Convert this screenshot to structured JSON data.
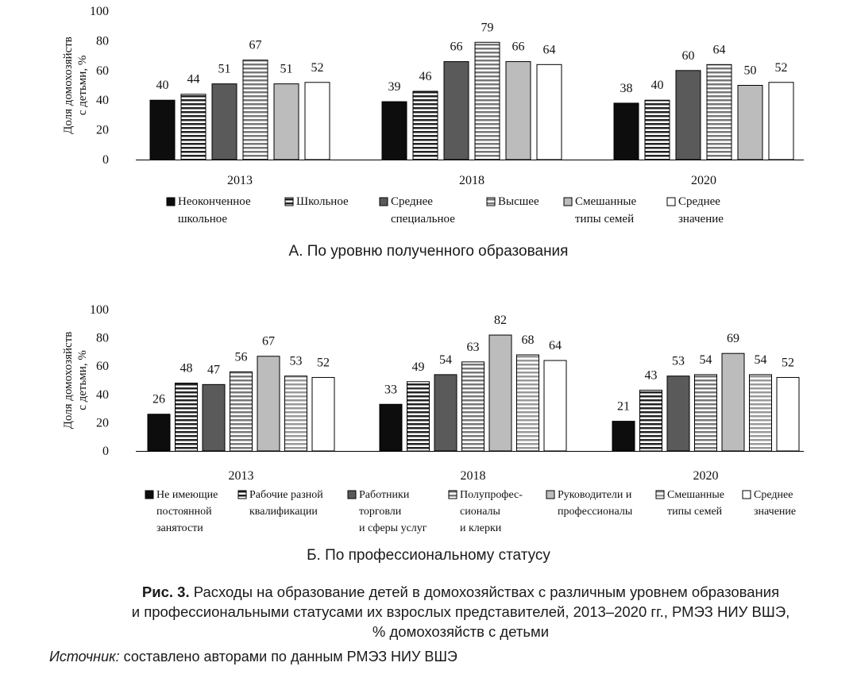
{
  "chart_data": [
    {
      "type": "bar",
      "panel": "A",
      "subtitle": "А. По уровню полученного образования",
      "ylabel": "Доля домохозяйств с детьми, %",
      "ylabel_lines": [
        "Доля домохозяйств",
        "с детьми, %"
      ],
      "ylim": [
        0,
        100
      ],
      "yticks": [
        0,
        20,
        40,
        60,
        80,
        100
      ],
      "categories": [
        "2013",
        "2018",
        "2020"
      ],
      "series": [
        {
          "name": "Неоконченное школьное",
          "legend_lines": [
            "Неоконченное",
            "школьное"
          ],
          "pattern": "solid-black",
          "values": [
            40,
            39,
            38
          ]
        },
        {
          "name": "Школьное",
          "legend_lines": [
            "Школьное"
          ],
          "pattern": "h-stripes-dense",
          "values": [
            44,
            46,
            40
          ]
        },
        {
          "name": "Среднее специальное",
          "legend_lines": [
            "Среднее",
            "специальное"
          ],
          "pattern": "solid-darkgray",
          "values": [
            51,
            66,
            60
          ]
        },
        {
          "name": "Высшее",
          "legend_lines": [
            "Высшее"
          ],
          "pattern": "h-stripes-gray",
          "values": [
            67,
            79,
            64
          ]
        },
        {
          "name": "Смешанные типы семей",
          "legend_lines": [
            "Смешанные",
            "типы семей"
          ],
          "pattern": "solid-lightgray",
          "values": [
            51,
            66,
            50
          ]
        },
        {
          "name": "Среднее значение",
          "legend_lines": [
            "Среднее",
            "значение"
          ],
          "pattern": "white",
          "values": [
            52,
            64,
            52
          ]
        }
      ]
    },
    {
      "type": "bar",
      "panel": "B",
      "subtitle": "Б. По профессиональному статусу",
      "ylabel": "Доля домохозяйств с детьми, %",
      "ylabel_lines": [
        "Доля домохозяйств",
        "с детьми, %"
      ],
      "ylim": [
        0,
        100
      ],
      "yticks": [
        0,
        20,
        40,
        60,
        80,
        100
      ],
      "categories": [
        "2013",
        "2018",
        "2020"
      ],
      "series": [
        {
          "name": "Не имеющие постоянной занятости",
          "legend_lines": [
            "Не имеющие",
            "постоянной",
            "занятости"
          ],
          "pattern": "solid-black",
          "values": [
            26,
            33,
            21
          ]
        },
        {
          "name": "Рабочие разной квалификации",
          "legend_lines": [
            "Рабочие разной",
            "квалификации"
          ],
          "pattern": "h-stripes-dense",
          "values": [
            48,
            49,
            43
          ]
        },
        {
          "name": "Работники торговли и сферы услуг",
          "legend_lines": [
            "Работники",
            "торговли",
            "и сферы услуг"
          ],
          "pattern": "solid-darkgray",
          "values": [
            47,
            54,
            53
          ]
        },
        {
          "name": "Полупрофессионалы и клерки",
          "legend_lines": [
            "Полупрофес-",
            "сионалы",
            "и клерки"
          ],
          "pattern": "h-stripes-gray",
          "values": [
            56,
            63,
            54
          ]
        },
        {
          "name": "Руководители и профессионалы",
          "legend_lines": [
            "Руководители и",
            "профессионалы"
          ],
          "pattern": "solid-lightgray",
          "values": [
            67,
            82,
            69
          ]
        },
        {
          "name": "Смешанные типы семей",
          "legend_lines": [
            "Смешанные",
            "типы семей"
          ],
          "pattern": "h-stripes-light",
          "values": [
            53,
            68,
            54
          ]
        },
        {
          "name": "Среднее значение",
          "legend_lines": [
            "Среднее",
            "значение"
          ],
          "pattern": "white",
          "values": [
            52,
            64,
            52
          ]
        }
      ]
    }
  ],
  "caption": {
    "label": "Рис. 3.",
    "lines": [
      "Расходы на образование детей в домохозяйствах с различным уровнем образования",
      "и профессиональными статусами их взрослых представителей, 2013–2020 гг., РМЭЗ НИУ ВШЭ,",
      "% домохозяйств с детьми"
    ]
  },
  "source": {
    "label": "Источник:",
    "text": "составлено авторами по данным РМЭЗ НИУ ВШЭ"
  },
  "colors": {
    "solid-black": "#0d0d0d",
    "solid-darkgray": "#5a5a5a",
    "solid-lightgray": "#bcbcbc",
    "stripe-dark": "#222222",
    "stripe-gray": "#777777",
    "stripe-light": "#999999",
    "white": "#ffffff",
    "axis": "#000000"
  }
}
